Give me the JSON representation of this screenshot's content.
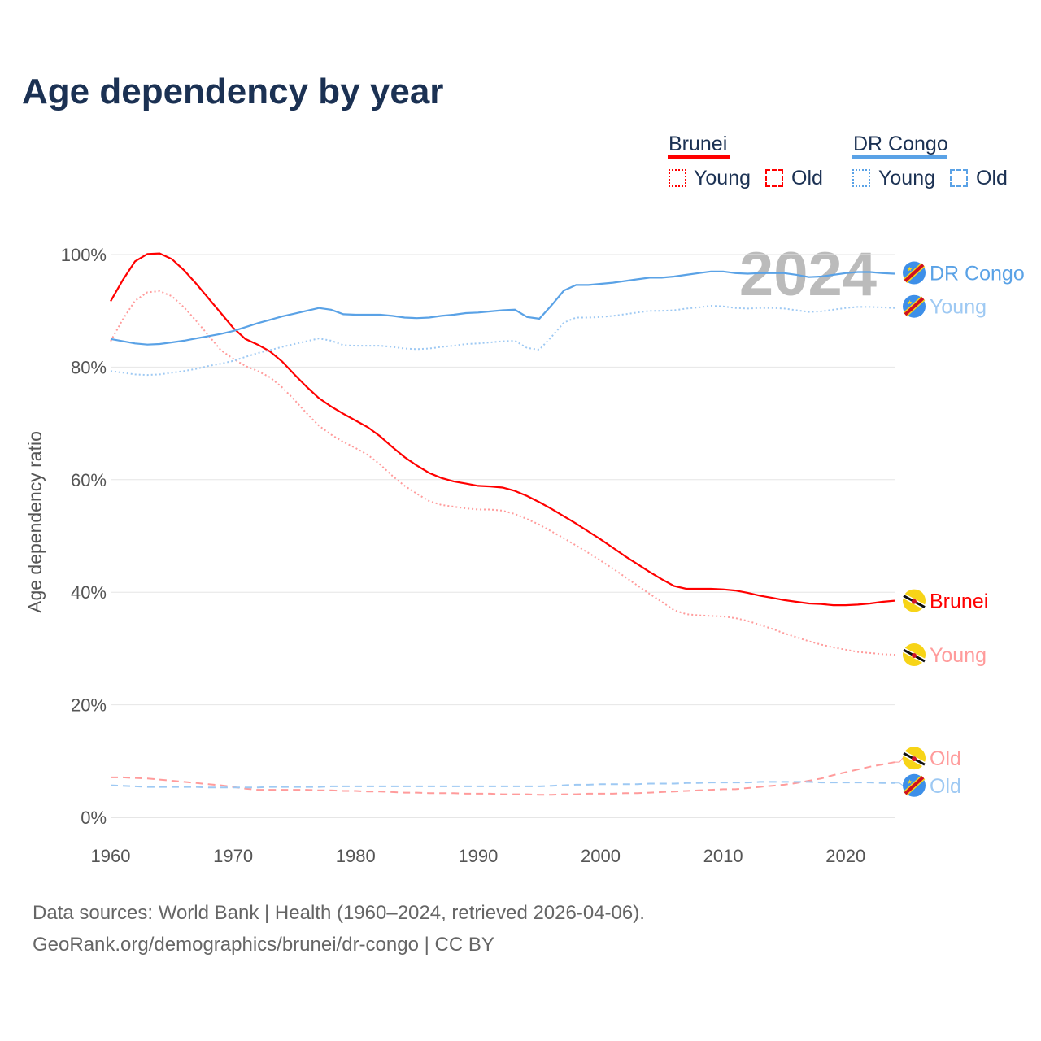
{
  "title": "Age dependency by year",
  "legend": {
    "brunei": "Brunei",
    "drc": "DR Congo",
    "young": "Young",
    "old": "Old"
  },
  "colors": {
    "brunei": "#ff0000",
    "brunei_light": "#ff9b9b",
    "drc": "#5aa2e6",
    "drc_light": "#9ec9f3"
  },
  "year_label": "2024",
  "footer": {
    "line1": "Data sources: World Bank | Health (1960–2024, retrieved 2026-04-06).",
    "line2": "GeoRank.org/demographics/brunei/dr-congo | CC BY"
  },
  "chart_data": {
    "type": "line",
    "title": "Age dependency by year",
    "ylabel": "Age dependency ratio",
    "xlim": [
      1960,
      2024
    ],
    "ylim": [
      0,
      100
    ],
    "xticks": [
      "1960",
      "1970",
      "1980",
      "1990",
      "2000",
      "2010",
      "2020"
    ],
    "yticks": [
      "0%",
      "20%",
      "40%",
      "60%",
      "80%",
      "100%"
    ],
    "x_start": 1960,
    "series": [
      {
        "name": "Brunei",
        "label": "Brunei",
        "country": "brunei",
        "kind": "total",
        "values": [
          91.7,
          95.5,
          98.8,
          100.1,
          100.2,
          99.2,
          97.2,
          94.8,
          92.2,
          89.6,
          87.0,
          85.0,
          84.0,
          82.8,
          81.0,
          78.7,
          76.5,
          74.5,
          73.0,
          71.7,
          70.5,
          69.3,
          67.7,
          65.8,
          64.0,
          62.5,
          61.2,
          60.3,
          59.7,
          59.3,
          58.9,
          58.8,
          58.6,
          58.0,
          57.1,
          56.0,
          54.8,
          53.5,
          52.2,
          50.8,
          49.4,
          47.9,
          46.4,
          45.0,
          43.6,
          42.3,
          41.1,
          40.6,
          40.6,
          40.6,
          40.5,
          40.3,
          39.9,
          39.4,
          39.0,
          38.6,
          38.3,
          38.0,
          37.9,
          37.7,
          37.7,
          37.8,
          38.0,
          38.3,
          38.5
        ]
      },
      {
        "name": "Brunei Young",
        "label": "Young",
        "country": "brunei",
        "kind": "young",
        "values": [
          84.6,
          88.5,
          91.8,
          93.3,
          93.5,
          92.6,
          90.6,
          88.2,
          85.6,
          83.0,
          81.5,
          80.2,
          79.3,
          78.2,
          76.4,
          74.2,
          71.8,
          69.6,
          68.0,
          66.7,
          65.6,
          64.4,
          62.7,
          60.7,
          58.9,
          57.5,
          56.2,
          55.5,
          55.2,
          54.9,
          54.7,
          54.7,
          54.5,
          53.9,
          53.0,
          52.0,
          50.8,
          49.6,
          48.3,
          47.0,
          45.6,
          44.2,
          42.7,
          41.2,
          39.7,
          38.3,
          36.8,
          36.1,
          35.9,
          35.8,
          35.7,
          35.4,
          34.9,
          34.2,
          33.5,
          32.7,
          32.0,
          31.3,
          30.7,
          30.2,
          29.8,
          29.4,
          29.2,
          29.0,
          28.9
        ]
      },
      {
        "name": "Brunei Old",
        "label": "Old",
        "country": "brunei",
        "kind": "old",
        "values": [
          7.1,
          7.1,
          7.0,
          6.9,
          6.7,
          6.5,
          6.3,
          6.1,
          5.9,
          5.7,
          5.4,
          5.1,
          4.9,
          4.9,
          4.9,
          4.9,
          4.9,
          4.8,
          4.8,
          4.7,
          4.7,
          4.6,
          4.6,
          4.5,
          4.4,
          4.4,
          4.3,
          4.3,
          4.3,
          4.2,
          4.2,
          4.2,
          4.1,
          4.1,
          4.1,
          4.0,
          4.0,
          4.1,
          4.1,
          4.2,
          4.2,
          4.2,
          4.3,
          4.3,
          4.4,
          4.5,
          4.6,
          4.7,
          4.8,
          4.9,
          5.0,
          5.0,
          5.2,
          5.4,
          5.6,
          5.8,
          6.1,
          6.5,
          6.9,
          7.5,
          8.0,
          8.5,
          9.0,
          9.4,
          9.8
        ]
      },
      {
        "name": "DR Congo",
        "label": "DR Congo",
        "country": "drc",
        "kind": "total",
        "values": [
          85.0,
          84.6,
          84.2,
          84.0,
          84.1,
          84.4,
          84.7,
          85.1,
          85.5,
          85.9,
          86.4,
          87.1,
          87.8,
          88.4,
          89.0,
          89.5,
          90.0,
          90.5,
          90.2,
          89.4,
          89.3,
          89.3,
          89.3,
          89.1,
          88.8,
          88.7,
          88.8,
          89.1,
          89.3,
          89.6,
          89.7,
          89.9,
          90.1,
          90.2,
          88.9,
          88.6,
          91.0,
          93.6,
          94.6,
          94.6,
          94.8,
          95.0,
          95.3,
          95.6,
          95.9,
          95.9,
          96.1,
          96.4,
          96.7,
          97.0,
          97.0,
          96.7,
          96.6,
          96.7,
          96.7,
          96.7,
          96.4,
          96.0,
          96.1,
          96.4,
          96.7,
          96.9,
          96.9,
          96.7,
          96.6
        ]
      },
      {
        "name": "DR Congo Young",
        "label": "Young",
        "country": "drc",
        "kind": "young",
        "values": [
          79.3,
          79.0,
          78.7,
          78.6,
          78.7,
          79.0,
          79.3,
          79.7,
          80.2,
          80.6,
          81.1,
          81.8,
          82.5,
          83.0,
          83.6,
          84.1,
          84.6,
          85.1,
          84.7,
          83.9,
          83.8,
          83.8,
          83.8,
          83.6,
          83.3,
          83.2,
          83.3,
          83.6,
          83.8,
          84.1,
          84.2,
          84.4,
          84.6,
          84.7,
          83.4,
          83.1,
          85.4,
          87.9,
          88.8,
          88.8,
          88.9,
          89.1,
          89.4,
          89.7,
          90.0,
          90.0,
          90.1,
          90.4,
          90.6,
          90.9,
          90.8,
          90.5,
          90.4,
          90.5,
          90.5,
          90.4,
          90.1,
          89.8,
          89.9,
          90.2,
          90.5,
          90.7,
          90.7,
          90.6,
          90.5
        ]
      },
      {
        "name": "DR Congo Old",
        "label": "Old",
        "country": "drc",
        "kind": "old",
        "values": [
          5.7,
          5.6,
          5.5,
          5.4,
          5.4,
          5.4,
          5.4,
          5.4,
          5.3,
          5.3,
          5.3,
          5.3,
          5.3,
          5.4,
          5.4,
          5.4,
          5.4,
          5.4,
          5.5,
          5.5,
          5.5,
          5.5,
          5.5,
          5.5,
          5.5,
          5.5,
          5.5,
          5.5,
          5.5,
          5.5,
          5.5,
          5.5,
          5.5,
          5.5,
          5.5,
          5.5,
          5.6,
          5.7,
          5.8,
          5.8,
          5.9,
          5.9,
          5.9,
          5.9,
          6.0,
          6.0,
          6.0,
          6.1,
          6.1,
          6.2,
          6.2,
          6.2,
          6.2,
          6.3,
          6.3,
          6.3,
          6.3,
          6.3,
          6.2,
          6.2,
          6.2,
          6.2,
          6.2,
          6.1,
          6.1
        ]
      }
    ]
  }
}
